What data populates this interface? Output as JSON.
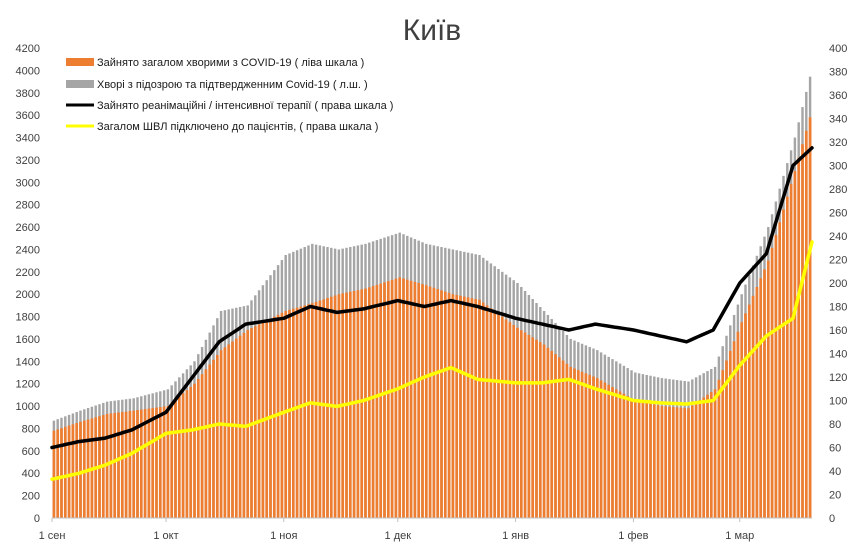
{
  "chart_data": {
    "type": "bar",
    "title": "Київ",
    "grid": false,
    "legend_position": "top-left",
    "x_axis": {
      "type": "date",
      "start": "2020-09-01",
      "end": "2021-03-20",
      "tick_labels": [
        "1 сен",
        "1 окт",
        "1 ноя",
        "1 дек",
        "1 янв",
        "1 фев",
        "1 мар"
      ],
      "tick_dates": [
        "2020-09-01",
        "2020-10-01",
        "2020-11-01",
        "2020-12-01",
        "2021-01-01",
        "2021-02-01",
        "2021-03-01"
      ]
    },
    "y_left": {
      "min": 0,
      "max": 4200,
      "step": 200
    },
    "y_right": {
      "min": 0,
      "max": 400,
      "step": 20
    },
    "series": [
      {
        "name": "Зайнято загалом хворими з COVID-19 ( ліва шкала )",
        "kind": "bar",
        "axis": "left",
        "color": "#ed7d31",
        "points": [
          [
            "2020-09-01",
            780
          ],
          [
            "2020-09-08",
            860
          ],
          [
            "2020-09-15",
            930
          ],
          [
            "2020-09-22",
            960
          ],
          [
            "2020-10-01",
            1000
          ],
          [
            "2020-10-08",
            1200
          ],
          [
            "2020-10-15",
            1500
          ],
          [
            "2020-10-22",
            1680
          ],
          [
            "2020-11-01",
            1850
          ],
          [
            "2020-11-08",
            1920
          ],
          [
            "2020-11-15",
            2000
          ],
          [
            "2020-11-22",
            2050
          ],
          [
            "2020-12-01",
            2150
          ],
          [
            "2020-12-08",
            2080
          ],
          [
            "2020-12-15",
            2000
          ],
          [
            "2020-12-22",
            1950
          ],
          [
            "2021-01-01",
            1700
          ],
          [
            "2021-01-08",
            1550
          ],
          [
            "2021-01-15",
            1350
          ],
          [
            "2021-01-22",
            1250
          ],
          [
            "2021-02-01",
            1050
          ],
          [
            "2021-02-08",
            1000
          ],
          [
            "2021-02-15",
            980
          ],
          [
            "2021-02-22",
            1150
          ],
          [
            "2021-03-01",
            1750
          ],
          [
            "2021-03-08",
            2300
          ],
          [
            "2021-03-15",
            3100
          ],
          [
            "2021-03-20",
            3700
          ]
        ]
      },
      {
        "name": "Хворі з підозрою та підтвердженним Covid-19 ( л.ш. )",
        "kind": "bar",
        "axis": "left",
        "color": "#a5a5a5",
        "points": [
          [
            "2020-09-01",
            870
          ],
          [
            "2020-09-08",
            960
          ],
          [
            "2020-09-15",
            1040
          ],
          [
            "2020-09-22",
            1070
          ],
          [
            "2020-10-01",
            1150
          ],
          [
            "2020-10-08",
            1400
          ],
          [
            "2020-10-15",
            1850
          ],
          [
            "2020-10-22",
            1900
          ],
          [
            "2020-11-01",
            2350
          ],
          [
            "2020-11-08",
            2450
          ],
          [
            "2020-11-15",
            2400
          ],
          [
            "2020-11-22",
            2450
          ],
          [
            "2020-12-01",
            2550
          ],
          [
            "2020-12-08",
            2450
          ],
          [
            "2020-12-15",
            2400
          ],
          [
            "2020-12-22",
            2350
          ],
          [
            "2021-01-01",
            2100
          ],
          [
            "2021-01-08",
            1850
          ],
          [
            "2021-01-15",
            1600
          ],
          [
            "2021-01-22",
            1500
          ],
          [
            "2021-02-01",
            1300
          ],
          [
            "2021-02-08",
            1250
          ],
          [
            "2021-02-15",
            1220
          ],
          [
            "2021-02-22",
            1350
          ],
          [
            "2021-03-01",
            2000
          ],
          [
            "2021-03-08",
            2600
          ],
          [
            "2021-03-15",
            3400
          ],
          [
            "2021-03-20",
            4080
          ]
        ]
      },
      {
        "name": "Зайнято реанімаційні / інтенсивної терапії ( права шкала )",
        "kind": "line",
        "axis": "right",
        "color": "#000000",
        "points": [
          [
            "2020-09-01",
            60
          ],
          [
            "2020-09-08",
            65
          ],
          [
            "2020-09-15",
            68
          ],
          [
            "2020-09-22",
            75
          ],
          [
            "2020-10-01",
            90
          ],
          [
            "2020-10-08",
            120
          ],
          [
            "2020-10-15",
            150
          ],
          [
            "2020-10-22",
            165
          ],
          [
            "2020-11-01",
            170
          ],
          [
            "2020-11-08",
            180
          ],
          [
            "2020-11-15",
            175
          ],
          [
            "2020-11-22",
            178
          ],
          [
            "2020-12-01",
            185
          ],
          [
            "2020-12-08",
            180
          ],
          [
            "2020-12-15",
            185
          ],
          [
            "2020-12-22",
            180
          ],
          [
            "2021-01-01",
            170
          ],
          [
            "2021-01-08",
            165
          ],
          [
            "2021-01-15",
            160
          ],
          [
            "2021-01-22",
            165
          ],
          [
            "2021-02-01",
            160
          ],
          [
            "2021-02-08",
            155
          ],
          [
            "2021-02-15",
            150
          ],
          [
            "2021-02-22",
            160
          ],
          [
            "2021-03-01",
            200
          ],
          [
            "2021-03-08",
            225
          ],
          [
            "2021-03-15",
            300
          ],
          [
            "2021-03-20",
            315
          ]
        ]
      },
      {
        "name": "Загалом ШВЛ  підключено до пацієнтів, ( права шкала )",
        "kind": "line",
        "axis": "right",
        "color": "#ffff00",
        "points": [
          [
            "2020-09-01",
            33
          ],
          [
            "2020-09-08",
            38
          ],
          [
            "2020-09-15",
            45
          ],
          [
            "2020-09-22",
            55
          ],
          [
            "2020-10-01",
            72
          ],
          [
            "2020-10-08",
            75
          ],
          [
            "2020-10-15",
            80
          ],
          [
            "2020-10-22",
            78
          ],
          [
            "2020-11-01",
            90
          ],
          [
            "2020-11-08",
            98
          ],
          [
            "2020-11-15",
            95
          ],
          [
            "2020-11-22",
            100
          ],
          [
            "2020-12-01",
            110
          ],
          [
            "2020-12-08",
            120
          ],
          [
            "2020-12-15",
            128
          ],
          [
            "2020-12-22",
            118
          ],
          [
            "2021-01-01",
            115
          ],
          [
            "2021-01-08",
            115
          ],
          [
            "2021-01-15",
            118
          ],
          [
            "2021-01-22",
            110
          ],
          [
            "2021-02-01",
            100
          ],
          [
            "2021-02-08",
            98
          ],
          [
            "2021-02-15",
            97
          ],
          [
            "2021-02-22",
            100
          ],
          [
            "2021-03-01",
            130
          ],
          [
            "2021-03-08",
            155
          ],
          [
            "2021-03-15",
            170
          ],
          [
            "2021-03-20",
            235
          ]
        ]
      }
    ]
  }
}
